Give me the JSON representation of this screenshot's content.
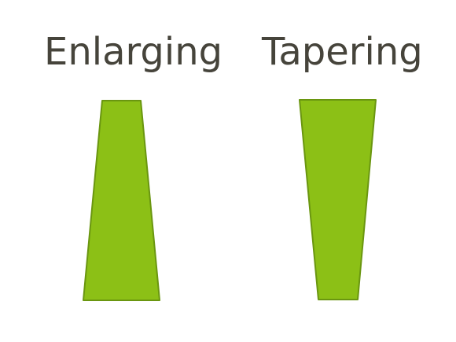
{
  "labels": {
    "left": "Enlarging",
    "right": "Tapering"
  },
  "shapes": {
    "left": {
      "name": "enlarging-trapezoid",
      "meaning": "widens downward"
    },
    "right": {
      "name": "tapering-trapezoid",
      "meaning": "narrows downward"
    }
  },
  "colors": {
    "fill": "#8cc016",
    "stroke": "#6a9610",
    "text": "#46443b",
    "background": "#ffffff"
  }
}
